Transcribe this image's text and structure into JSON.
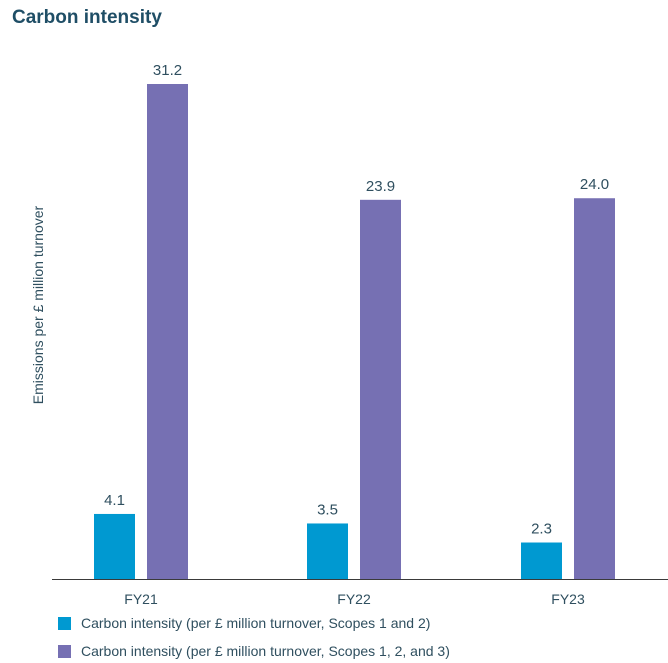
{
  "title": "Carbon intensity",
  "chart_data": {
    "type": "bar",
    "title": "Carbon intensity",
    "xlabel": "",
    "ylabel": "Emissions per £ million turnover",
    "categories": [
      "FY21",
      "FY22",
      "FY23"
    ],
    "series": [
      {
        "name": "Carbon intensity (per £ million turnover, Scopes 1 and 2)",
        "color": "#0099d1",
        "values": [
          4.1,
          3.5,
          2.3
        ],
        "labels": [
          "4.1",
          "3.5",
          "2.3"
        ]
      },
      {
        "name": "Carbon intensity (per £ million turnover, Scopes 1, 2, and 3)",
        "color": "#7670b3",
        "values": [
          31.2,
          23.9,
          24.0
        ],
        "labels": [
          "31.2",
          "23.9",
          "24.0"
        ]
      }
    ],
    "ylim": [
      0,
      31.2
    ],
    "grid": false,
    "legend_position": "bottom-left"
  }
}
